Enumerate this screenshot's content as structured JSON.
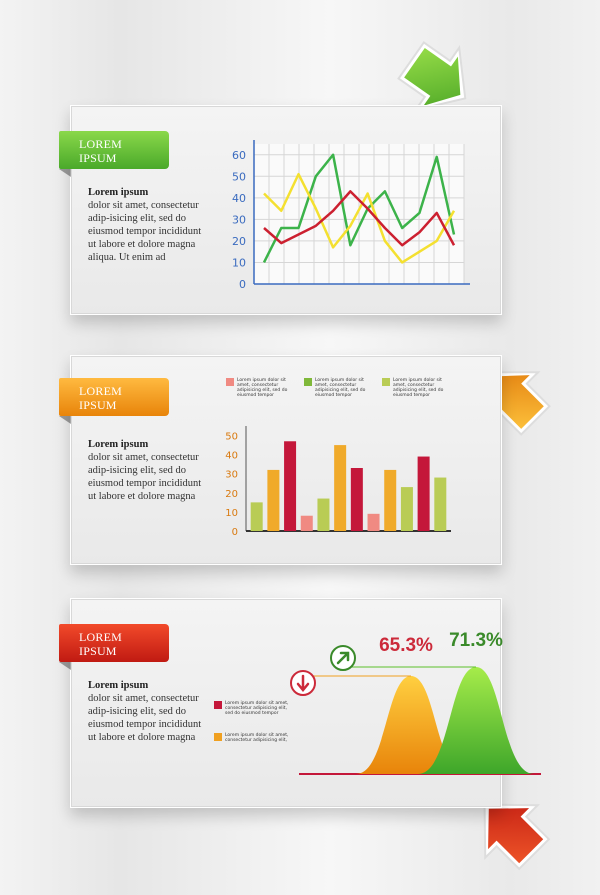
{
  "cards": [
    {
      "ribbon_label": "LOREM\nIPSUM",
      "desc_title": "Lorem ipsum",
      "desc_text": "dolor sit amet, consectetur adip-isicing elit, sed do eiusmod tempor incididunt ut labore et dolore magna aliqua. Ut enim ad",
      "ribbon_color": "#5fbf3a"
    },
    {
      "ribbon_label": "LOREM\nIPSUM",
      "desc_title": "Lorem ipsum",
      "desc_text": "dolor sit amet, consectetur adip-isicing elit, sed do eiusmod tempor incididunt ut labore et dolore magna",
      "ribbon_color": "#f19a12"
    },
    {
      "ribbon_label": "LOREM\nIPSUM",
      "desc_title": "Lorem ipsum",
      "desc_text": "dolor sit amet, consectetur adip-isicing elit, sed do eiusmod tempor incididunt ut labore et dolore magna",
      "ribbon_color": "#d8261a"
    }
  ],
  "chart_data": [
    {
      "type": "line",
      "ylim": [
        0,
        65
      ],
      "yticks": [
        0,
        10,
        20,
        30,
        40,
        50,
        60
      ],
      "grid": true,
      "series": [
        {
          "color": "#3cb34a",
          "values": [
            10,
            26,
            26,
            50,
            60,
            18,
            35,
            43,
            26,
            33,
            59,
            23
          ]
        },
        {
          "color": "#f4e030",
          "values": [
            42,
            34,
            51,
            35,
            17,
            27,
            42,
            20,
            10,
            15,
            20,
            34
          ]
        },
        {
          "color": "#cc2030",
          "values": [
            26,
            19,
            23,
            27,
            34,
            43,
            35,
            26,
            18,
            24,
            33,
            18
          ]
        }
      ]
    },
    {
      "type": "bar",
      "ylim": [
        0,
        55
      ],
      "yticks": [
        0,
        10,
        20,
        30,
        40,
        50
      ],
      "values": [
        15,
        32,
        47,
        8,
        17,
        45,
        33,
        9,
        32,
        23,
        39,
        28
      ],
      "colors": [
        "#b9cc55",
        "#f0aa2a",
        "#c4173a",
        "#f08a82",
        "#b9cc55",
        "#f0aa2a",
        "#c4173a",
        "#f08a82",
        "#f0aa2a",
        "#b9cc55",
        "#c4173a",
        "#b9cc55"
      ],
      "legend": [
        {
          "color": "#f08a82",
          "text": "Lorem ipsum dolor sit amet, consectetur adipisicing elit, sed do eiusmod tempor"
        },
        {
          "color": "#7fb83a",
          "text": "Lorem ipsum dolor sit amet, consectetur adipisicing elit, sed do eiusmod tempor"
        },
        {
          "color": "#b9cc55",
          "text": "Lorem ipsum dolor sit amet, consectetur adipisicing elit, sed do eiusmod tempor"
        }
      ]
    },
    {
      "type": "area",
      "series": [
        {
          "color": "#f0a020",
          "peak_label": "65.3%",
          "peak_value": 65.3
        },
        {
          "color": "#5cbf2a",
          "peak_label": "71.3%",
          "peak_value": 71.3
        }
      ],
      "peak_label_colors": [
        "#cc2a3a",
        "#3a8a2a"
      ],
      "legend": [
        {
          "color": "#c4173a",
          "text": "Lorem ipsum dolor sit amet, consectetur adipisicing elit, sed do eiusmod tempor"
        },
        {
          "color": "#f0a020",
          "text": "Lorem ipsum dolor sit amet, consectetur adipisicing elit,"
        }
      ]
    }
  ],
  "icons": [
    "down-arrow-icon",
    "up-right-arrow-icon"
  ]
}
